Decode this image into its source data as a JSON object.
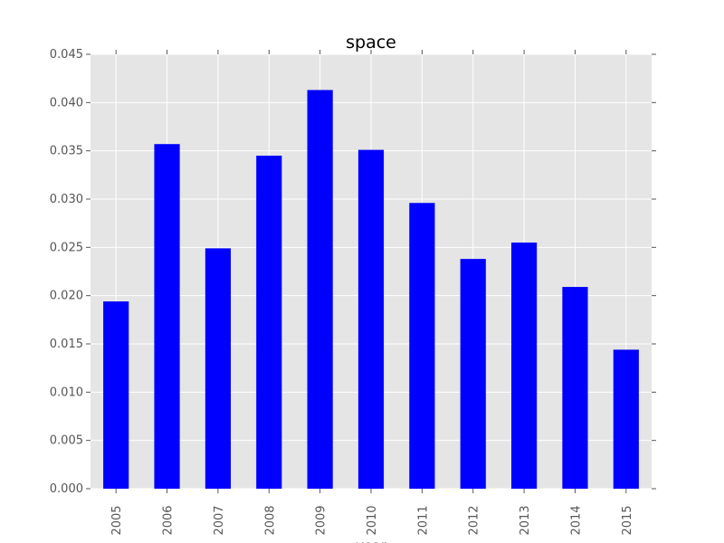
{
  "chart_data": {
    "type": "bar",
    "title": "space",
    "xlabel": "year",
    "ylabel": "",
    "categories": [
      "2005",
      "2006",
      "2007",
      "2008",
      "2009",
      "2010",
      "2011",
      "2012",
      "2013",
      "2014",
      "2015"
    ],
    "values": [
      0.0194,
      0.0357,
      0.0249,
      0.0345,
      0.0413,
      0.0351,
      0.0296,
      0.0238,
      0.0255,
      0.0209,
      0.0144
    ],
    "ylim": [
      0,
      0.045
    ],
    "yticks": [
      "0.000",
      "0.005",
      "0.010",
      "0.015",
      "0.020",
      "0.025",
      "0.030",
      "0.035",
      "0.040",
      "0.045"
    ],
    "grid": true,
    "legend": "none",
    "colors": {
      "bar": "#0000ff",
      "plot_background": "#e5e5e5",
      "grid": "#ffffff",
      "tick_text": "#555555"
    }
  }
}
